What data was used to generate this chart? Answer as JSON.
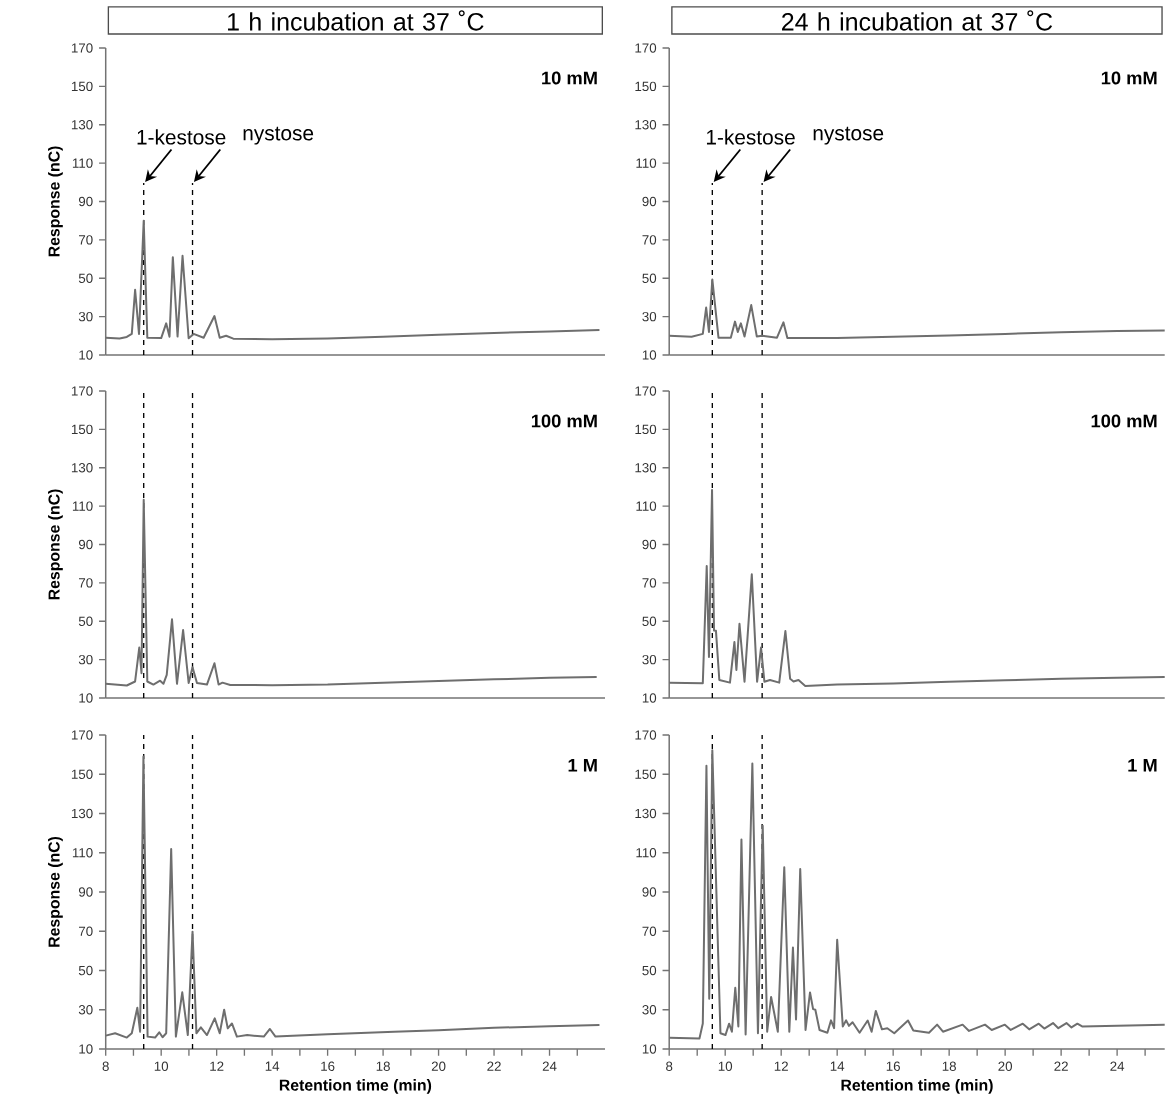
{
  "chart_data": [
    {
      "type": "line",
      "title": "1 h incubation at 37 ˚C",
      "ylabel": "Response (nC)",
      "color": "#6e6e6e",
      "line_style": "solid",
      "tick_labels": "y",
      "annotations": [
        "10 mM",
        {
          "text": "1-kestose",
          "x": 9.37,
          "y": 99.6
        },
        {
          "text": "nystose",
          "x": 11.13,
          "y": 99.6
        }
      ],
      "ref_lines": [
        {
          "axis": "x",
          "value": 9.37,
          "color": "#000000",
          "line_style": "dashed"
        },
        {
          "axis": "x",
          "value": 11.13,
          "color": "#000000",
          "line_style": "dashed"
        }
      ],
      "xlim": [
        8,
        26
      ],
      "ylim": [
        10,
        170
      ],
      "yticks": [
        10,
        30,
        50,
        70,
        90,
        110,
        130,
        150,
        170
      ],
      "x": [
        8,
        8.5,
        8.76,
        8.94,
        9.06,
        9.2,
        9.37,
        9.5,
        10.0,
        10.18,
        10.3,
        10.42,
        10.59,
        10.77,
        10.99,
        11.17,
        11.53,
        11.92,
        12.11,
        12.34,
        12.6,
        14,
        16,
        18,
        20,
        22,
        24,
        25.8
      ],
      "values": [
        19,
        18.6,
        19.4,
        21,
        44,
        21,
        80,
        19,
        18.8,
        26.5,
        19.5,
        61,
        19.6,
        61.7,
        18.7,
        21,
        19,
        30.3,
        19,
        20,
        18.5,
        18.2,
        18.6,
        19.5,
        20.5,
        21.5,
        22.3,
        23
      ]
    },
    {
      "type": "line",
      "title": "24 h incubation at 37 ˚C",
      "color": "#6e6e6e",
      "line_style": "solid",
      "tick_labels": "y",
      "annotations": [
        "10 mM",
        {
          "text": "1-kestose",
          "x": 9.54,
          "y": 99.6
        },
        {
          "text": "nystose",
          "x": 11.32,
          "y": 99.6
        }
      ],
      "ref_lines": [
        {
          "axis": "x",
          "value": 9.54,
          "color": "#000000",
          "line_style": "dashed"
        },
        {
          "axis": "x",
          "value": 11.32,
          "color": "#000000",
          "line_style": "dashed"
        }
      ],
      "xlim": [
        8,
        25.7
      ],
      "ylim": [
        10,
        170
      ],
      "yticks": [
        10,
        30,
        50,
        70,
        90,
        110,
        130,
        150,
        170
      ],
      "x": [
        8,
        8.8,
        9.2,
        9.32,
        9.42,
        9.54,
        9.76,
        10.2,
        10.35,
        10.45,
        10.56,
        10.69,
        10.93,
        11.13,
        11.32,
        11.85,
        12.08,
        12.22,
        13,
        14,
        16,
        18,
        20,
        22,
        24,
        25.7
      ],
      "values": [
        20,
        19.5,
        21,
        34.7,
        22,
        49.4,
        19,
        19,
        27.4,
        22,
        26.5,
        19.6,
        36,
        19.6,
        20,
        19,
        27,
        18.9,
        18.8,
        18.8,
        19.5,
        20.2,
        21,
        21.8,
        22.5,
        22.8
      ]
    },
    {
      "type": "line",
      "ylabel": "Response (nC)",
      "color": "#6e6e6e",
      "line_style": "solid",
      "tick_labels": "y",
      "annotations": [
        "100 mM"
      ],
      "ref_lines": [
        {
          "axis": "x",
          "value": 9.37,
          "color": "#000000",
          "line_style": "dashed"
        },
        {
          "axis": "x",
          "value": 11.13,
          "color": "#000000",
          "line_style": "dashed"
        }
      ],
      "xlim": [
        8,
        26
      ],
      "ylim": [
        10,
        170
      ],
      "yticks": [
        10,
        30,
        50,
        70,
        90,
        110,
        130,
        150,
        170
      ],
      "x": [
        8,
        8.76,
        9.06,
        9.21,
        9.29,
        9.37,
        9.5,
        9.72,
        9.96,
        10.08,
        10.2,
        10.39,
        10.57,
        10.79,
        10.99,
        11.13,
        11.29,
        11.65,
        11.92,
        12.07,
        12.21,
        12.49,
        14,
        16,
        18,
        20,
        22,
        24,
        25.7
      ],
      "values": [
        17.4,
        16.5,
        18.6,
        36.3,
        22.9,
        113.3,
        18.6,
        17,
        19,
        17.4,
        22,
        51,
        17.4,
        45.4,
        17.8,
        26,
        17.8,
        17,
        28.1,
        17,
        18,
        16.8,
        16.7,
        17,
        18,
        18.8,
        19.7,
        20.5,
        21
      ]
    },
    {
      "type": "line",
      "color": "#6e6e6e",
      "line_style": "solid",
      "tick_labels": "y",
      "annotations": [
        "100 mM"
      ],
      "ref_lines": [
        {
          "axis": "x",
          "value": 9.54,
          "color": "#000000",
          "line_style": "dashed"
        },
        {
          "axis": "x",
          "value": 11.32,
          "color": "#000000",
          "line_style": "dashed"
        }
      ],
      "xlim": [
        8,
        25.7
      ],
      "ylim": [
        10,
        170
      ],
      "yticks": [
        10,
        30,
        50,
        70,
        90,
        110,
        130,
        150,
        170
      ],
      "x": [
        8,
        9.2,
        9.34,
        9.42,
        9.53,
        9.6,
        9.67,
        9.79,
        10.17,
        10.33,
        10.4,
        10.51,
        10.69,
        10.95,
        11.14,
        11.28,
        11.4,
        11.6,
        11.93,
        12.15,
        12.32,
        12.44,
        12.62,
        12.86,
        14,
        16,
        18,
        20,
        22,
        24,
        25.7
      ],
      "values": [
        18,
        17.7,
        78.8,
        31.4,
        118.4,
        45.2,
        45,
        19.4,
        18,
        39.2,
        24.6,
        48.7,
        18.5,
        74.5,
        18.5,
        36.3,
        18.5,
        19.4,
        18,
        44.9,
        20,
        18.6,
        19.4,
        16.3,
        17,
        17.5,
        18.5,
        19.2,
        20,
        20.6,
        21
      ]
    },
    {
      "type": "line",
      "ylabel": "Response (nC)",
      "xlabel": "Retention time (min)",
      "color": "#6e6e6e",
      "line_style": "solid",
      "annotations": [
        "1 M"
      ],
      "ref_lines": [
        {
          "axis": "x",
          "value": 9.37,
          "color": "#000000",
          "line_style": "dashed"
        },
        {
          "axis": "x",
          "value": 11.13,
          "color": "#000000",
          "line_style": "dashed"
        }
      ],
      "xlim": [
        8,
        26
      ],
      "ylim": [
        10,
        170
      ],
      "yticks": [
        10,
        30,
        50,
        70,
        90,
        110,
        130,
        150,
        170
      ],
      "xticks": [
        8,
        {
          "value": 9,
          "label": null
        },
        10,
        {
          "value": 11,
          "label": null
        },
        12,
        {
          "value": 13,
          "label": null
        },
        14,
        {
          "value": 15,
          "label": null
        },
        16,
        {
          "value": 17,
          "label": null
        },
        18,
        {
          "value": 19,
          "label": null
        },
        20,
        {
          "value": 21,
          "label": null
        },
        22,
        {
          "value": 23,
          "label": null
        },
        24,
        {
          "value": 25,
          "label": null
        }
      ],
      "x": [
        8,
        8.34,
        8.76,
        8.94,
        9.14,
        9.24,
        9.36,
        9.51,
        9.78,
        9.93,
        10.05,
        10.18,
        10.36,
        10.53,
        10.76,
        10.96,
        11.13,
        11.27,
        11.43,
        11.65,
        11.93,
        12.11,
        12.27,
        12.4,
        12.55,
        12.73,
        13.1,
        13.7,
        13.92,
        14.12,
        16,
        18.4,
        20,
        22,
        24,
        25.8
      ],
      "values": [
        16.8,
        18,
        15.8,
        18,
        31,
        18.8,
        159,
        16.3,
        15.8,
        18.5,
        16,
        18,
        111.9,
        16.3,
        38.9,
        17.1,
        69.8,
        18,
        21,
        17.1,
        25.6,
        18,
        30,
        20.5,
        23,
        16.3,
        17.1,
        16.3,
        20.2,
        16.3,
        17.5,
        18.8,
        19.5,
        20.8,
        21.6,
        22.2
      ]
    },
    {
      "type": "line",
      "xlabel": "Retention time (min)",
      "color": "#6e6e6e",
      "line_style": "solid",
      "annotations": [
        "1 M"
      ],
      "ref_lines": [
        {
          "axis": "x",
          "value": 9.54,
          "color": "#000000",
          "line_style": "dashed"
        },
        {
          "axis": "x",
          "value": 11.32,
          "color": "#000000",
          "line_style": "dashed"
        }
      ],
      "xlim": [
        8,
        25.7
      ],
      "ylim": [
        10,
        170
      ],
      "yticks": [
        10,
        30,
        50,
        70,
        90,
        110,
        130,
        150,
        170
      ],
      "xticks": [
        8,
        {
          "value": 9,
          "label": null
        },
        10,
        {
          "value": 11,
          "label": null
        },
        12,
        {
          "value": 13,
          "label": null
        },
        14,
        {
          "value": 15,
          "label": null
        },
        16,
        {
          "value": 17,
          "label": null
        },
        18,
        {
          "value": 19,
          "label": null
        },
        20,
        {
          "value": 21,
          "label": null
        },
        22,
        {
          "value": 23,
          "label": null
        },
        24,
        {
          "value": 25,
          "label": null
        }
      ],
      "x": [
        8,
        9.08,
        9.2,
        9.33,
        9.43,
        9.54,
        9.83,
        10.01,
        10.14,
        10.24,
        10.36,
        10.47,
        10.58,
        10.73,
        10.97,
        11.17,
        11.34,
        11.5,
        11.64,
        11.88,
        12.11,
        12.29,
        12.42,
        12.53,
        12.68,
        12.87,
        13.03,
        13.14,
        13.22,
        13.37,
        13.65,
        13.78,
        13.89,
        14.0,
        14.2,
        14.32,
        14.42,
        14.55,
        14.8,
        15.09,
        15.23,
        15.38,
        15.6,
        15.79,
        16.04,
        16.53,
        16.72,
        17.28,
        17.57,
        17.78,
        18.48,
        18.71,
        19.28,
        19.52,
        19.99,
        20.2,
        20.63,
        20.86,
        21.2,
        21.4,
        21.71,
        21.9,
        22.19,
        22.37,
        22.58,
        22.75,
        25.7
      ],
      "values": [
        15.7,
        15.3,
        23,
        154.3,
        35.6,
        162.2,
        18,
        17.1,
        22.9,
        18.8,
        41.2,
        21.5,
        116.7,
        17.4,
        155.5,
        18,
        123.8,
        18.8,
        36.5,
        18.8,
        102.6,
        18.8,
        61.7,
        25,
        101.7,
        19.7,
        38.8,
        30.3,
        30,
        19.7,
        18.3,
        24.6,
        20.6,
        65.6,
        21.5,
        24.6,
        21.8,
        23.6,
        18.3,
        24.5,
        18.8,
        29.4,
        20,
        20.6,
        18,
        24.5,
        19.4,
        18.3,
        22.4,
        18.8,
        22.4,
        19.2,
        22.4,
        19.7,
        22.4,
        19.7,
        22.9,
        20,
        22.9,
        20.4,
        23.2,
        20.6,
        23.2,
        21,
        22.9,
        21.5,
        22.4
      ]
    }
  ]
}
